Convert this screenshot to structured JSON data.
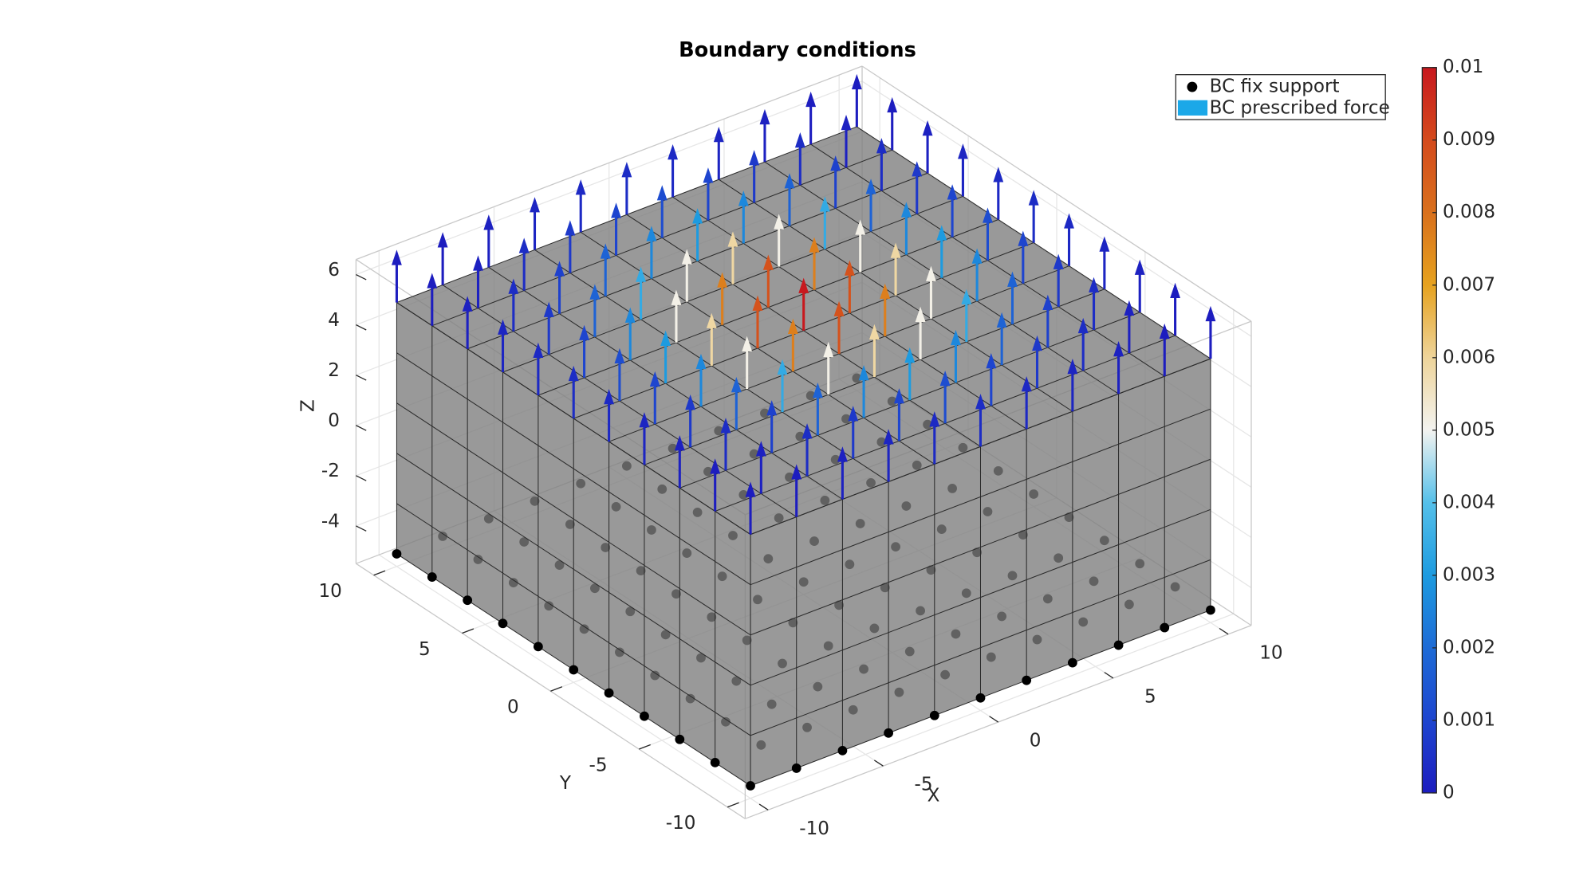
{
  "chart_data": {
    "type": "quiver3",
    "title": "Boundary conditions",
    "xlabel": "X",
    "ylabel": "Y",
    "zlabel": "Z",
    "xlim": [
      -11,
      11
    ],
    "ylim": [
      -11,
      11
    ],
    "zlim": [
      -5.5,
      6.6
    ],
    "xticks": [
      -10,
      -5,
      0,
      5,
      10
    ],
    "yticks": [
      -10,
      -5,
      0,
      5,
      10
    ],
    "zticks": [
      -4,
      -2,
      0,
      2,
      4,
      6
    ],
    "grid": true,
    "x": [
      -10,
      -8,
      -6,
      -4,
      -2,
      0,
      2,
      4,
      6,
      8,
      10
    ],
    "y": [
      -10,
      -8,
      -6,
      -4,
      -2,
      0,
      2,
      4,
      6,
      8,
      10
    ],
    "z": [
      -5,
      5
    ],
    "series": [
      {
        "name": "BC fix support",
        "color": "#000000"
      },
      {
        "name": "BC prescribed force",
        "color": "#1ba8e8",
        "values": [
          [
            0,
            0,
            0.0001,
            0.0002,
            0.0003,
            0.0004,
            0.0003,
            0.0002,
            0.0001,
            0,
            0
          ],
          [
            0,
            0.0001,
            0.0004,
            0.0007,
            0.001,
            0.0012,
            0.001,
            0.0007,
            0.0004,
            0.0001,
            0
          ],
          [
            0.0001,
            0.0004,
            0.0009,
            0.0018,
            0.0026,
            0.003,
            0.0026,
            0.0018,
            0.0009,
            0.0004,
            0.0001
          ],
          [
            0.0002,
            0.0007,
            0.0018,
            0.0034,
            0.0051,
            0.0059,
            0.0051,
            0.0034,
            0.0018,
            0.0007,
            0.0002
          ],
          [
            0.0003,
            0.001,
            0.0026,
            0.0051,
            0.0077,
            0.0088,
            0.0077,
            0.0051,
            0.0026,
            0.001,
            0.0003
          ],
          [
            0.0004,
            0.0012,
            0.003,
            0.0059,
            0.0088,
            0.01,
            0.0088,
            0.0059,
            0.003,
            0.0012,
            0.0004
          ],
          [
            0.0003,
            0.001,
            0.0026,
            0.0051,
            0.0077,
            0.0088,
            0.0077,
            0.0051,
            0.0026,
            0.001,
            0.0003
          ],
          [
            0.0002,
            0.0007,
            0.0018,
            0.0034,
            0.0051,
            0.0059,
            0.0051,
            0.0034,
            0.0018,
            0.0007,
            0.0002
          ],
          [
            0.0001,
            0.0004,
            0.0009,
            0.0018,
            0.0026,
            0.003,
            0.0026,
            0.0018,
            0.0009,
            0.0004,
            0.0001
          ],
          [
            0,
            0.0001,
            0.0004,
            0.0007,
            0.001,
            0.0012,
            0.001,
            0.0007,
            0.0004,
            0.0001,
            0
          ],
          [
            0,
            0,
            0.0001,
            0.0002,
            0.0003,
            0.0004,
            0.0003,
            0.0002,
            0.0001,
            0,
            0
          ]
        ]
      }
    ],
    "legend": "upper right",
    "colormap": [
      "#1d1dbf",
      "#1e45cf",
      "#1e6bd6",
      "#1d9be0",
      "#55c0ea",
      "#f3f3f0",
      "#eed49a",
      "#e6a21f",
      "#d9701c",
      "#d44a1c",
      "#c8181e"
    ],
    "clim": [
      0,
      0.01
    ],
    "cticks": [
      0,
      0.001,
      0.002,
      0.003,
      0.004,
      0.005,
      0.006,
      0.007,
      0.008,
      0.009,
      0.01
    ]
  }
}
